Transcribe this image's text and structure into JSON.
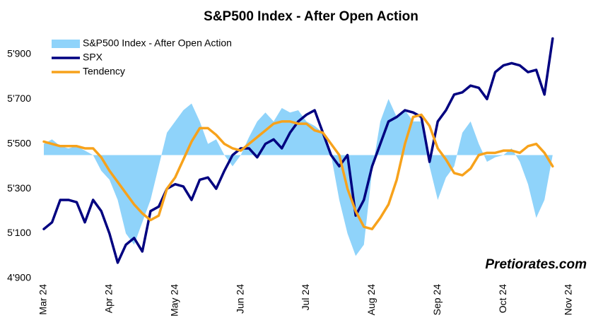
{
  "chart_data": {
    "type": "line",
    "title": "S&P500 Index - After Open Action",
    "watermark": "Pretiorates.com",
    "categories": [
      "Mar 24",
      null,
      null,
      null,
      null,
      null,
      null,
      null,
      "Apr 24",
      null,
      null,
      null,
      null,
      null,
      null,
      null,
      "May 24",
      null,
      null,
      null,
      null,
      null,
      null,
      null,
      "Jun 24",
      null,
      null,
      null,
      null,
      null,
      null,
      null,
      "Jul 24",
      null,
      null,
      null,
      null,
      null,
      null,
      null,
      "Aug 24",
      null,
      null,
      null,
      null,
      null,
      null,
      null,
      "Sep 24",
      null,
      null,
      null,
      null,
      null,
      null,
      null,
      "Oct 24",
      null,
      null,
      null,
      null,
      null,
      null,
      null,
      "Nov 24"
    ],
    "area_baseline": 5450,
    "series": [
      {
        "name": "S&P500 Index - After Open Action",
        "kind": "area",
        "color": "#8fd3fa",
        "values": [
          5500,
          5520,
          5490,
          5480,
          5490,
          5470,
          5450,
          5380,
          5340,
          5250,
          5100,
          5050,
          5150,
          5250,
          5400,
          5550,
          5600,
          5650,
          5680,
          5600,
          5500,
          5520,
          5450,
          5400,
          5450,
          5530,
          5600,
          5640,
          5600,
          5660,
          5640,
          5650,
          5600,
          5580,
          5550,
          5450,
          5250,
          5100,
          5000,
          5050,
          5380,
          5600,
          5700,
          5620,
          5650,
          5600,
          5600,
          5400,
          5250,
          5350,
          5400,
          5550,
          5600,
          5500,
          5420,
          5440,
          5450,
          5480,
          5420,
          5320,
          5170,
          5250,
          5450,
          null,
          null
        ]
      },
      {
        "name": "SPX",
        "kind": "line",
        "color": "#000080",
        "values": [
          5120,
          5150,
          5250,
          5250,
          5240,
          5150,
          5250,
          5200,
          5100,
          4970,
          5050,
          5080,
          5020,
          5200,
          5220,
          5300,
          5320,
          5310,
          5250,
          5340,
          5350,
          5300,
          5380,
          5450,
          5480,
          5480,
          5440,
          5500,
          5520,
          5480,
          5550,
          5600,
          5630,
          5650,
          5550,
          5450,
          5400,
          5450,
          5180,
          5250,
          5400,
          5500,
          5600,
          5620,
          5650,
          5640,
          5620,
          5420,
          5600,
          5650,
          5720,
          5730,
          5760,
          5750,
          5700,
          5820,
          5850,
          5860,
          5850,
          5820,
          5830,
          5720,
          5970,
          null,
          null
        ]
      },
      {
        "name": "Tendency",
        "kind": "line",
        "color": "#f7a21b",
        "values": [
          5510,
          5500,
          5490,
          5490,
          5490,
          5480,
          5480,
          5440,
          5380,
          5330,
          5280,
          5230,
          5190,
          5160,
          5180,
          5300,
          5350,
          5430,
          5510,
          5570,
          5570,
          5540,
          5500,
          5480,
          5470,
          5500,
          5530,
          5560,
          5590,
          5600,
          5600,
          5590,
          5590,
          5560,
          5550,
          5500,
          5450,
          5300,
          5200,
          5130,
          5120,
          5170,
          5230,
          5340,
          5500,
          5620,
          5630,
          5580,
          5480,
          5430,
          5370,
          5360,
          5390,
          5450,
          5460,
          5460,
          5470,
          5470,
          5460,
          5490,
          5500,
          5460,
          5400,
          null,
          null
        ]
      }
    ],
    "ylim": [
      4900,
      6000
    ],
    "yticks": [
      {
        "value": 4900,
        "label": "4'900"
      },
      {
        "value": 5100,
        "label": "5'100"
      },
      {
        "value": 5300,
        "label": "5'300"
      },
      {
        "value": 5500,
        "label": "5'500"
      },
      {
        "value": 5700,
        "label": "5'700"
      },
      {
        "value": 5900,
        "label": "5'900"
      }
    ],
    "legend": "top-left"
  }
}
